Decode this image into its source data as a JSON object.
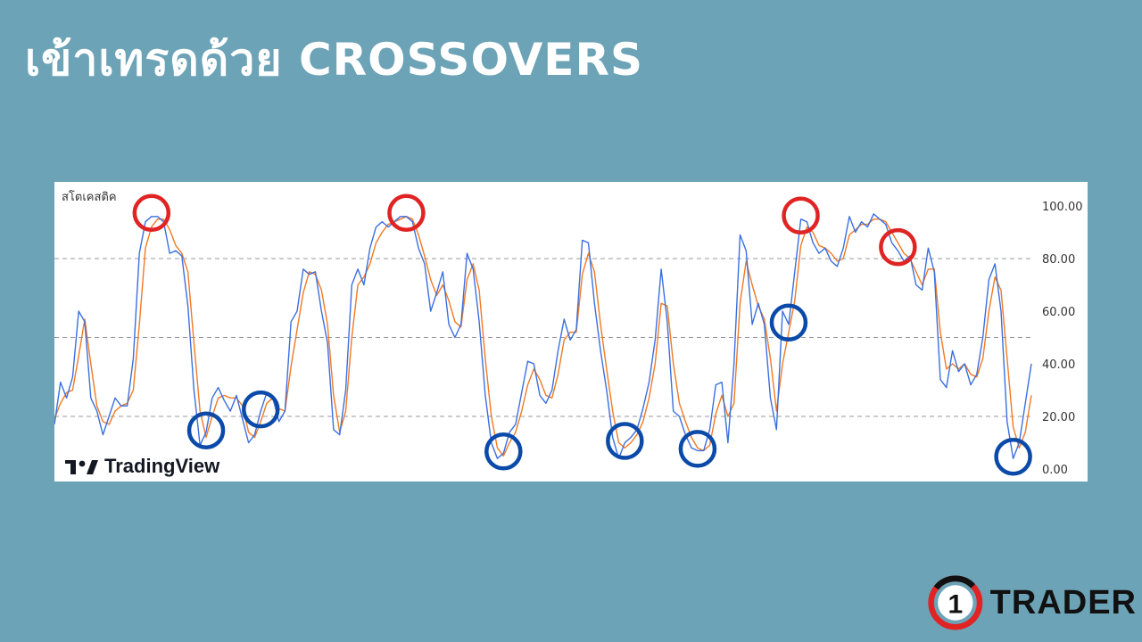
{
  "title": "เข้าเทรดด้วย CROSSOVERS",
  "colors": {
    "background": "#6ca3b6",
    "k_line": "#3b6fe0",
    "d_line": "#f07a24",
    "overbought_circle": "#e02424",
    "oversold_circle": "#0b4aa8",
    "grid": "#999999"
  },
  "logo": {
    "text": "TradingView"
  },
  "brand": {
    "number": "1",
    "word": "TRADER"
  },
  "chart_data": {
    "type": "line",
    "indicator_label": "สโตเคสติค",
    "ylim": [
      0,
      100
    ],
    "y_ticks": [
      "100.00",
      "80.00",
      "60.00",
      "40.00",
      "20.00",
      "0.00"
    ],
    "y_tick_values": [
      100,
      80,
      60,
      40,
      20,
      0
    ],
    "reference_lines": [
      80,
      50,
      20
    ],
    "series": [
      {
        "values": [
          17,
          33,
          27,
          35,
          60,
          56,
          27,
          22,
          13,
          20,
          27,
          24,
          24,
          42,
          82,
          94,
          96,
          96,
          94,
          82,
          83,
          81,
          62,
          30,
          9,
          14,
          27,
          31,
          26,
          22,
          28,
          19,
          10,
          13,
          22,
          29,
          27,
          18,
          22,
          56,
          60,
          76,
          74,
          75,
          60,
          48,
          15,
          13,
          30,
          70,
          76,
          70,
          84,
          92,
          94,
          92,
          94,
          96,
          96,
          94,
          84,
          78,
          60,
          67,
          75,
          55,
          50,
          55,
          82,
          76,
          56,
          28,
          10,
          4,
          6,
          14,
          17,
          29,
          41,
          40,
          28,
          25,
          30,
          45,
          57,
          49,
          53,
          87,
          86,
          63,
          45,
          30,
          12,
          4,
          10,
          12,
          15,
          23,
          33,
          49,
          76,
          56,
          22,
          20,
          13,
          8,
          7,
          7,
          15,
          32,
          33,
          10,
          40,
          89,
          83,
          55,
          63,
          55,
          27,
          15,
          60,
          55,
          75,
          95,
          94,
          86,
          82,
          84,
          79,
          77,
          84,
          96,
          90,
          94,
          92,
          97,
          95,
          93,
          86,
          83,
          79,
          81,
          70,
          68,
          84,
          75,
          34,
          31,
          45,
          37,
          40,
          32,
          36,
          50,
          72,
          78,
          60,
          18,
          4,
          10,
          25,
          40
        ],
        "color": "#3b6fe0"
      },
      {
        "values": [
          19,
          25,
          29,
          30,
          43,
          57,
          40,
          24,
          18,
          17,
          22,
          24,
          25,
          30,
          55,
          84,
          92,
          95,
          95,
          91,
          85,
          82,
          75,
          48,
          22,
          12,
          20,
          27,
          28,
          27,
          27,
          24,
          14,
          12,
          18,
          25,
          27,
          23,
          22,
          39,
          53,
          67,
          75,
          74,
          68,
          55,
          28,
          14,
          22,
          50,
          70,
          73,
          78,
          86,
          90,
          93,
          94,
          95,
          96,
          95,
          89,
          81,
          72,
          66,
          70,
          64,
          56,
          54,
          72,
          78,
          68,
          42,
          20,
          8,
          5,
          10,
          14,
          22,
          32,
          38,
          34,
          28,
          27,
          36,
          49,
          52,
          52,
          74,
          82,
          75,
          55,
          38,
          22,
          10,
          8,
          10,
          13,
          18,
          27,
          40,
          63,
          62,
          40,
          25,
          18,
          12,
          8,
          7,
          9,
          21,
          28,
          20,
          25,
          63,
          79,
          70,
          62,
          57,
          42,
          22,
          40,
          52,
          64,
          85,
          92,
          90,
          85,
          84,
          82,
          79,
          80,
          89,
          91,
          93,
          93,
          95,
          95,
          94,
          90,
          86,
          82,
          80,
          75,
          70,
          76,
          76,
          52,
          38,
          40,
          38,
          40,
          36,
          35,
          42,
          60,
          73,
          68,
          42,
          16,
          8,
          14,
          28
        ],
        "color": "#f07a24"
      }
    ],
    "annotations": {
      "overbought_circles_at_index": [
        16,
        58,
        123,
        139
      ],
      "oversold_circles_at_index": [
        25,
        34,
        74,
        94,
        106,
        121,
        158
      ]
    }
  }
}
